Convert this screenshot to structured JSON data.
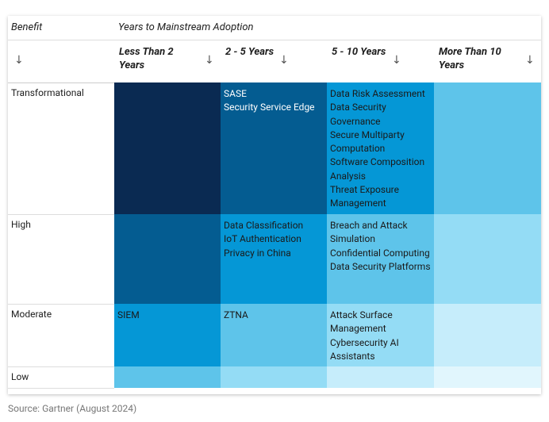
{
  "header": {
    "row_label": "Benefit",
    "group_label": "Years to Mainstream Adoption",
    "columns": [
      "Less Than 2 Years",
      "2 - 5 Years",
      "5 - 10 Years",
      "More Than 10 Years"
    ]
  },
  "table": {
    "rows": [
      {
        "label": "Transformational",
        "cells": [
          [],
          [
            "SASE",
            "Security Service Edge"
          ],
          [
            "Data Risk Assessment",
            "Data Security Governance",
            "Secure Multiparty Computation",
            "Software Composition Analysis",
            "Threat Exposure Management"
          ],
          []
        ]
      },
      {
        "label": "High",
        "cells": [
          [],
          [
            "Data Classification",
            "IoT Authentication",
            "Privacy in China"
          ],
          [
            "Breach and Attack Simulation",
            "Confidential Computing",
            "Data Security Platforms"
          ],
          []
        ]
      },
      {
        "label": "Moderate",
        "cells": [
          [
            "SIEM"
          ],
          [
            "ZTNA"
          ],
          [
            "Attack Surface Management",
            "Cybersecurity AI Assistants"
          ],
          []
        ]
      },
      {
        "label": "Low",
        "cells": [
          [],
          [],
          [],
          []
        ]
      }
    ]
  },
  "source": "Source: Gartner (August 2024)"
}
